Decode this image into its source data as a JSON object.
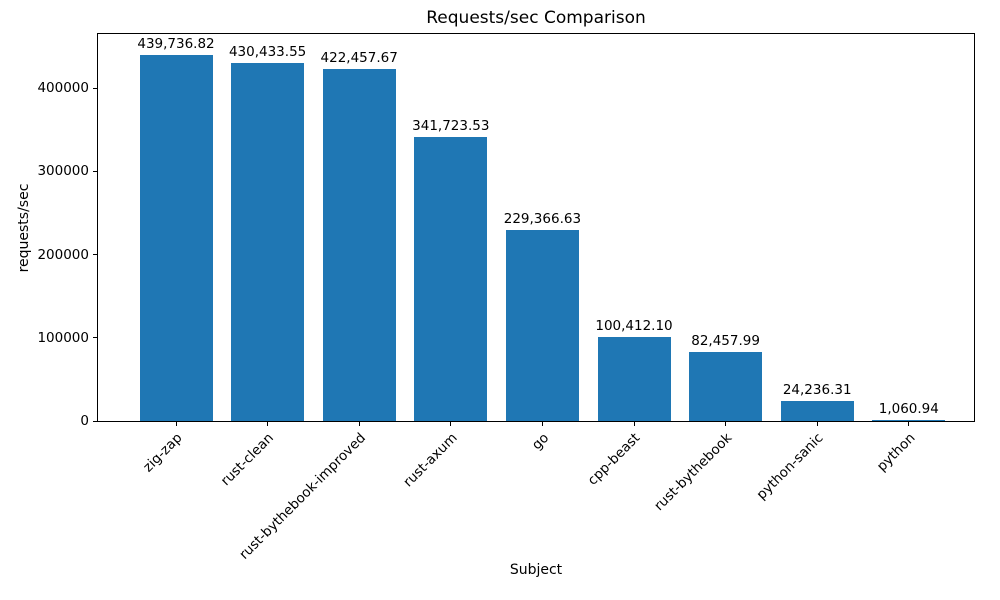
{
  "chart_data": {
    "type": "bar",
    "title": "Requests/sec Comparison",
    "xlabel": "Subject",
    "ylabel": "requests/sec",
    "categories": [
      "zig-zap",
      "rust-clean",
      "rust-bythebook-improved",
      "rust-axum",
      "go",
      "cpp-beast",
      "rust-bythebook",
      "python-sanic",
      "python"
    ],
    "values": [
      439736.82,
      430433.55,
      422457.67,
      341723.53,
      229366.63,
      100412.1,
      82457.99,
      24236.31,
      1060.94
    ],
    "bar_value_labels": [
      "439,736.82",
      "430,433.55",
      "422,457.67",
      "341,723.53",
      "229,366.63",
      "100,412.10",
      "82,457.99",
      "24,236.31",
      "1,060.94"
    ],
    "ytick_values": [
      0,
      100000,
      200000,
      300000,
      400000
    ],
    "ytick_labels": [
      "0",
      "100000",
      "200000",
      "300000",
      "400000"
    ],
    "ylim": [
      0,
      465000
    ],
    "bar_color": "#1f77b4",
    "grid": false,
    "legend": null
  }
}
